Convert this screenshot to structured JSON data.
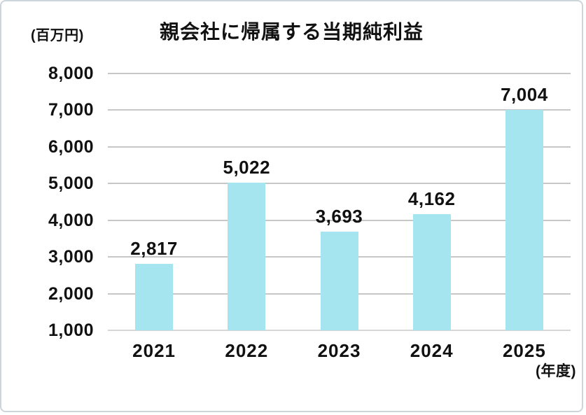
{
  "chart_data": {
    "type": "bar",
    "title": "親会社に帰属する当期純利益",
    "unit_label": "(百万円)",
    "x_axis_unit_label": "(年度)",
    "categories": [
      "2021",
      "2022",
      "2023",
      "2024",
      "2025"
    ],
    "values": [
      2817,
      5022,
      3693,
      4162,
      7004
    ],
    "value_labels": [
      "2,817",
      "5,022",
      "3,693",
      "4,162",
      "7,004"
    ],
    "y_ticks": [
      8000,
      7000,
      6000,
      5000,
      4000,
      3000,
      2000,
      1000
    ],
    "y_tick_labels": [
      "8,000",
      "7,000",
      "6,000",
      "5,000",
      "4,000",
      "3,000",
      "2,000",
      "1,000"
    ],
    "ylim": [
      1000,
      8000
    ],
    "grid": true,
    "legend": false,
    "colors": {
      "bar": "#a5e5f0",
      "gridline": "#c7c7c7",
      "axis_baseline": "#d6d6d6",
      "text": "#111111",
      "card_border": "#ccd5da"
    }
  }
}
